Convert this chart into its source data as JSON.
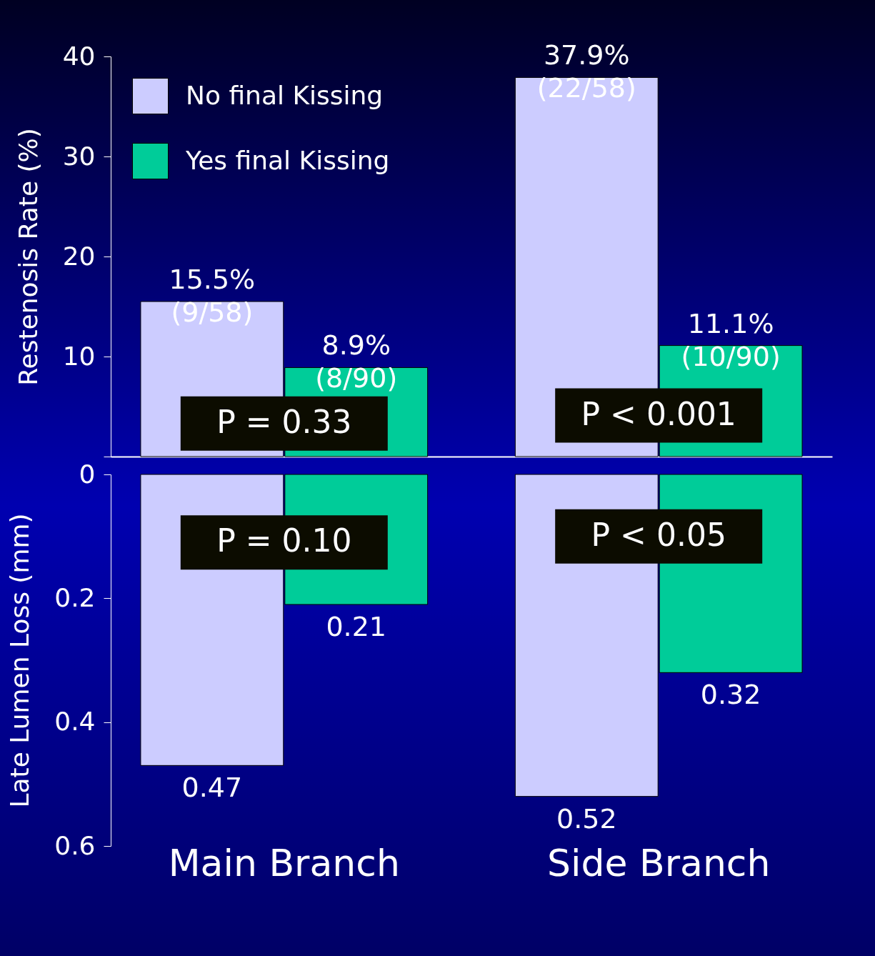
{
  "chart_data": [
    {
      "type": "bar",
      "ylabel": "Restenosis Rate (%)",
      "categories": [
        "Main Branch",
        "Side Branch"
      ],
      "series": [
        {
          "name": "No final Kissing",
          "color": "#ccccff",
          "values": [
            15.5,
            37.9
          ],
          "value_labels": [
            "15.5%\n(9/58)",
            "37.9%\n(22/58)"
          ]
        },
        {
          "name": "Yes final Kissing",
          "color": "#00cc99",
          "values": [
            8.9,
            11.1
          ],
          "value_labels": [
            "8.9%\n(8/90)",
            "11.1%\n(10/90)"
          ]
        }
      ],
      "ylim": [
        0,
        40
      ],
      "yticks": [
        {
          "value": 0,
          "label": null
        },
        10,
        20,
        30,
        40
      ],
      "legend": "top left",
      "tick_labels": "y",
      "annotations": [
        {
          "text": "P = 0.33",
          "x": "Main Branch",
          "y": 3.3
        },
        {
          "text": "P < 0.001",
          "x": "Side Branch",
          "y": 4.1
        }
      ]
    },
    {
      "type": "bar",
      "ylabel": "Late Lumen Loss (mm)",
      "categories": [
        "Main Branch",
        "Side Branch"
      ],
      "series": [
        {
          "color": "#ccccff",
          "values": [
            0.47,
            0.52
          ]
        },
        {
          "color": "#00cc99",
          "values": [
            0.21,
            0.32
          ]
        }
      ],
      "ylim": [
        0.6,
        0
      ],
      "yticks": [
        0,
        0.2,
        0.4,
        0.6
      ],
      "data_labels": true,
      "annotations": [
        {
          "text": "P = 0.10",
          "x": "Main Branch",
          "y": 0.11
        },
        {
          "text": "P < 0.05",
          "x": "Side Branch",
          "y": 0.1
        }
      ]
    }
  ]
}
